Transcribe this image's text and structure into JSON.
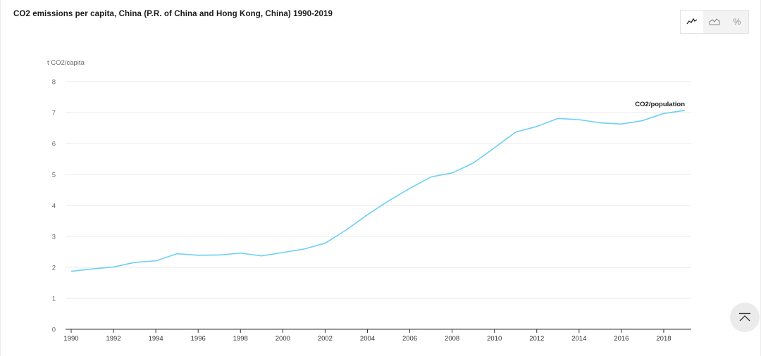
{
  "chart_title": "CO2 emissions per capita, China (P.R. of China and Hong Kong, China) 1990-2019",
  "toolbar": {
    "line_icon": "line-chart-icon",
    "area_icon": "area-chart-icon",
    "percent_label": "%"
  },
  "scroll_top_icon": "chevron-up-to-top-icon",
  "colors": {
    "series": "#6cd0f5",
    "grid": "#e9e9e9",
    "axis": "#333333",
    "tick_text": "#666666"
  },
  "chart_data": {
    "type": "line",
    "title": "CO2 emissions per capita, China (P.R. of China and Hong Kong, China) 1990-2019",
    "ylabel": "t CO2/capita",
    "xlabel": "",
    "ylim": [
      0,
      8
    ],
    "xlim": [
      1990,
      2019
    ],
    "y_ticks": [
      "0",
      "1",
      "2",
      "3",
      "4",
      "5",
      "6",
      "7",
      "8"
    ],
    "x_ticks": [
      "1990",
      "1992",
      "1994",
      "1996",
      "1998",
      "2000",
      "2002",
      "2004",
      "2006",
      "2008",
      "2010",
      "2012",
      "2014",
      "2016",
      "2018"
    ],
    "grid": true,
    "series": [
      {
        "name": "CO2/population",
        "x": [
          1990,
          1991,
          1992,
          1993,
          1994,
          1995,
          1996,
          1997,
          1998,
          1999,
          2000,
          2001,
          2002,
          2003,
          2004,
          2005,
          2006,
          2007,
          2008,
          2009,
          2010,
          2011,
          2012,
          2013,
          2014,
          2015,
          2016,
          2017,
          2018,
          2019
        ],
        "values": [
          1.87,
          1.95,
          2.01,
          2.16,
          2.21,
          2.44,
          2.39,
          2.4,
          2.46,
          2.37,
          2.48,
          2.59,
          2.78,
          3.21,
          3.7,
          4.15,
          4.55,
          4.92,
          5.05,
          5.37,
          5.86,
          6.37,
          6.55,
          6.81,
          6.77,
          6.67,
          6.63,
          6.74,
          6.97,
          7.07
        ]
      }
    ]
  }
}
